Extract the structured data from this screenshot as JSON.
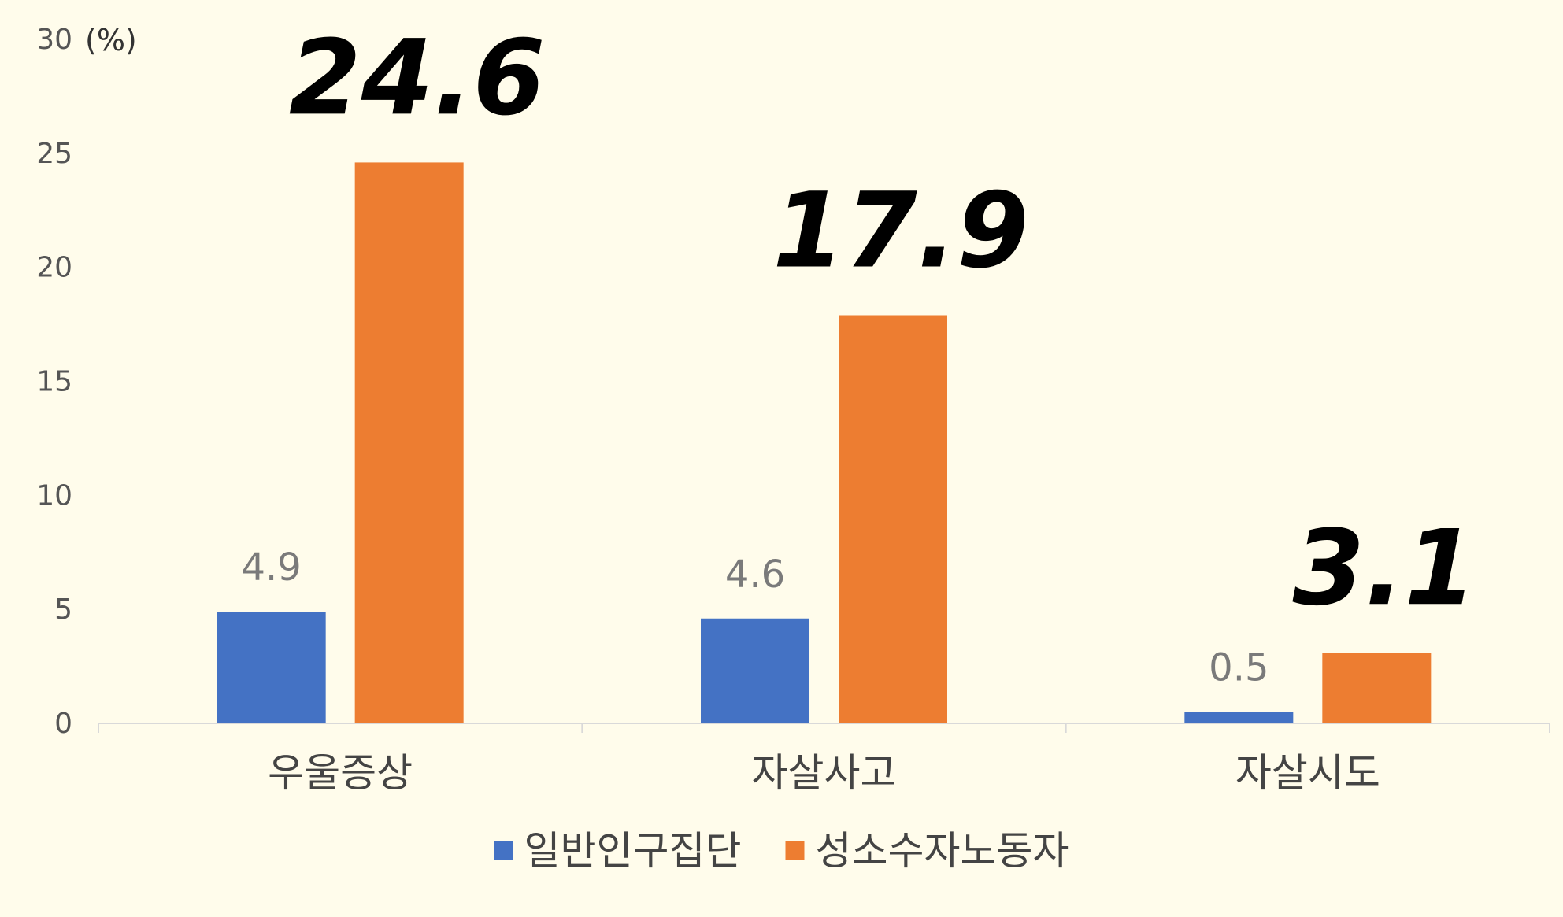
{
  "chart_data": {
    "type": "bar",
    "title": "",
    "unit_label": "(%)",
    "xlabel": "",
    "ylabel": "",
    "ylim": [
      0,
      30
    ],
    "yticks": [
      0,
      5,
      10,
      15,
      20,
      25,
      30
    ],
    "categories": [
      "우울증상",
      "자살사고",
      "자살시도"
    ],
    "series": [
      {
        "name": "일반인구집단",
        "color": "#4472C4",
        "values": [
          4.9,
          4.6,
          0.5
        ],
        "label_style": "small"
      },
      {
        "name": "성소수자노동자",
        "color": "#ED7D31",
        "values": [
          24.6,
          17.9,
          3.1
        ],
        "label_style": "big"
      }
    ],
    "legend_position": "bottom",
    "grid": false
  }
}
